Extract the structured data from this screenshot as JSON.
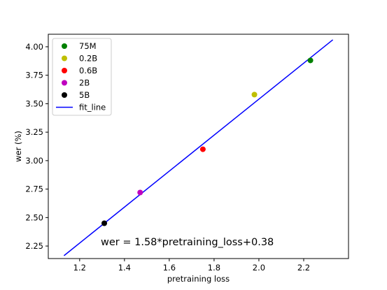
{
  "chart_data": {
    "type": "scatter",
    "xlabel": "pretraining loss",
    "ylabel": "wer (%)",
    "xlim": [
      1.06,
      2.4
    ],
    "ylim": [
      2.14,
      4.11
    ],
    "xticks": [
      1.2,
      1.4,
      1.6,
      1.8,
      2.0,
      2.2
    ],
    "xtick_labels": [
      "1.2",
      "1.4",
      "1.6",
      "1.8",
      "2.0",
      "2.2"
    ],
    "yticks": [
      2.25,
      2.5,
      2.75,
      3.0,
      3.25,
      3.5,
      3.75,
      4.0
    ],
    "ytick_labels": [
      "2.25",
      "2.50",
      "2.75",
      "3.00",
      "3.25",
      "3.50",
      "3.75",
      "4.00"
    ],
    "grid": false,
    "legend_position": "upper left",
    "points": [
      {
        "name": "75M",
        "x": 2.23,
        "y": 3.88,
        "color": "#008000"
      },
      {
        "name": "0.2B",
        "x": 1.98,
        "y": 3.58,
        "color": "#bfbf00"
      },
      {
        "name": "0.6B",
        "x": 1.75,
        "y": 3.1,
        "color": "#ff0000"
      },
      {
        "name": "2B",
        "x": 1.47,
        "y": 2.72,
        "color": "#bf00bf"
      },
      {
        "name": "5B",
        "x": 1.31,
        "y": 2.45,
        "color": "#000000"
      }
    ],
    "fit_line": {
      "name": "fit_line",
      "color": "#0000ff",
      "slope": 1.58,
      "intercept": 0.38,
      "x_start": 1.13,
      "x_end": 2.33
    },
    "annotation": "wer = 1.58*pretraining_loss+0.38"
  }
}
